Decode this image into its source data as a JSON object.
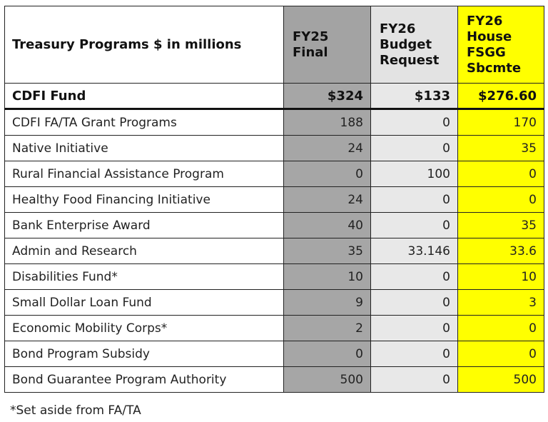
{
  "table": {
    "header": [
      [
        "Treasury Programs $ in millions"
      ],
      [
        "FY25",
        "Final"
      ],
      [
        "FY26",
        "Budget",
        "Request"
      ],
      [
        "FY26",
        "House",
        "FSGG",
        "Sbcmte"
      ]
    ],
    "summary": [
      "CDFI Fund",
      "$324",
      "$133",
      "$276.60"
    ],
    "rows": [
      [
        "CDFI FA/TA Grant Programs",
        "188",
        "0",
        "170"
      ],
      [
        "Native Initiative",
        "24",
        "0",
        "35"
      ],
      [
        "Rural Financial Assistance Program",
        "0",
        "100",
        "0"
      ],
      [
        "Healthy Food Financing Initiative",
        "24",
        "0",
        "0"
      ],
      [
        "Bank Enterprise Award",
        "40",
        "0",
        "35"
      ],
      [
        "Admin and Research",
        "35",
        "33.146",
        "33.6"
      ],
      [
        "Disabilities Fund*",
        "10",
        "0",
        "10"
      ],
      [
        "Small Dollar Loan Fund",
        "9",
        "0",
        "3"
      ],
      [
        "Economic Mobility Corps*",
        "2",
        "0",
        "0"
      ],
      [
        "Bond Program Subsidy",
        "0",
        "0",
        "0"
      ],
      [
        "Bond Guarantee Program Authority",
        "500",
        "0",
        "500"
      ]
    ]
  },
  "footnote": "*Set aside from FA/TA"
}
